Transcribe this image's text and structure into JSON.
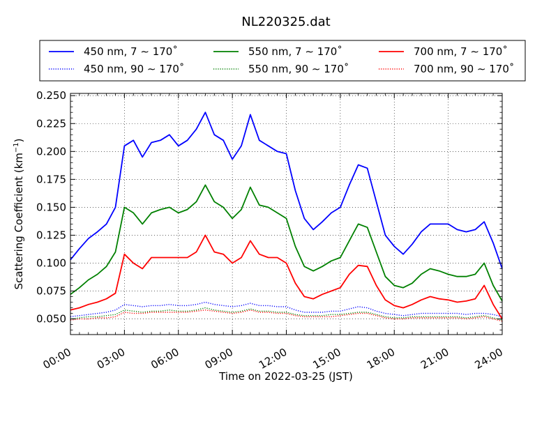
{
  "chart_data": {
    "type": "line",
    "title": "NL220325.dat",
    "xlabel": "Time on 2022-03-25 (JST)",
    "ylabel": "Scattering Coefficient (km",
    "ylabel_sup": "−1",
    "ylabel_close": ")",
    "xlim": [
      0,
      24
    ],
    "ylim": [
      0.036,
      0.252
    ],
    "xticks": [
      0,
      3,
      6,
      9,
      12,
      15,
      18,
      21,
      24
    ],
    "xtick_labels": [
      "00:00",
      "03:00",
      "06:00",
      "09:00",
      "12:00",
      "15:00",
      "18:00",
      "21:00",
      "24:00"
    ],
    "yticks": [
      0.05,
      0.075,
      0.1,
      0.125,
      0.15,
      0.175,
      0.2,
      0.225,
      0.25
    ],
    "ytick_labels": [
      "0.050",
      "0.075",
      "0.100",
      "0.125",
      "0.150",
      "0.175",
      "0.200",
      "0.225",
      "0.250"
    ],
    "grid": true,
    "legend_position": "top, above plot (3 columns)",
    "x": [
      0,
      0.5,
      1,
      1.5,
      2,
      2.5,
      3,
      3.5,
      4,
      4.5,
      5,
      5.5,
      6,
      6.5,
      7,
      7.5,
      8,
      8.5,
      9,
      9.5,
      10,
      10.5,
      11,
      11.5,
      12,
      12.5,
      13,
      13.5,
      14,
      14.5,
      15,
      15.5,
      16,
      16.5,
      17,
      17.5,
      18,
      18.5,
      19,
      19.5,
      20,
      20.5,
      21,
      21.5,
      22,
      22.5,
      23,
      23.5,
      24
    ],
    "series": [
      {
        "name": "450 nm, 7 ∼ 170˚",
        "color": "#0000ff",
        "style": "solid",
        "values": [
          0.103,
          0.113,
          0.122,
          0.128,
          0.135,
          0.15,
          0.205,
          0.21,
          0.195,
          0.208,
          0.21,
          0.215,
          0.205,
          0.21,
          0.22,
          0.235,
          0.215,
          0.21,
          0.193,
          0.205,
          0.233,
          0.21,
          0.205,
          0.2,
          0.198,
          0.165,
          0.14,
          0.13,
          0.137,
          0.145,
          0.15,
          0.17,
          0.188,
          0.185,
          0.155,
          0.125,
          0.115,
          0.108,
          0.117,
          0.128,
          0.135,
          0.135,
          0.135,
          0.13,
          0.128,
          0.13,
          0.137,
          0.118,
          0.095
        ]
      },
      {
        "name": "550 nm, 7 ∼ 170˚",
        "color": "#008000",
        "style": "solid",
        "values": [
          0.072,
          0.078,
          0.085,
          0.09,
          0.097,
          0.11,
          0.15,
          0.145,
          0.135,
          0.145,
          0.148,
          0.15,
          0.145,
          0.148,
          0.155,
          0.17,
          0.155,
          0.15,
          0.14,
          0.148,
          0.168,
          0.152,
          0.15,
          0.145,
          0.14,
          0.115,
          0.097,
          0.093,
          0.097,
          0.102,
          0.105,
          0.12,
          0.135,
          0.132,
          0.11,
          0.088,
          0.08,
          0.078,
          0.082,
          0.09,
          0.095,
          0.093,
          0.09,
          0.088,
          0.088,
          0.09,
          0.1,
          0.08,
          0.066
        ]
      },
      {
        "name": "700 nm, 7 ∼ 170˚",
        "color": "#ff0000",
        "style": "solid",
        "values": [
          0.058,
          0.06,
          0.063,
          0.065,
          0.068,
          0.073,
          0.108,
          0.1,
          0.095,
          0.105,
          0.105,
          0.105,
          0.105,
          0.105,
          0.11,
          0.125,
          0.11,
          0.108,
          0.1,
          0.105,
          0.12,
          0.108,
          0.105,
          0.105,
          0.1,
          0.082,
          0.07,
          0.068,
          0.072,
          0.075,
          0.078,
          0.09,
          0.098,
          0.097,
          0.08,
          0.067,
          0.062,
          0.06,
          0.063,
          0.067,
          0.07,
          0.068,
          0.067,
          0.065,
          0.066,
          0.068,
          0.08,
          0.063,
          0.05
        ]
      },
      {
        "name": "450 nm, 90 ∼ 170˚",
        "color": "#0000ff",
        "style": "dotted",
        "values": [
          0.052,
          0.053,
          0.054,
          0.055,
          0.056,
          0.058,
          0.063,
          0.062,
          0.061,
          0.062,
          0.062,
          0.063,
          0.062,
          0.062,
          0.063,
          0.065,
          0.063,
          0.062,
          0.061,
          0.062,
          0.064,
          0.062,
          0.062,
          0.061,
          0.061,
          0.058,
          0.056,
          0.056,
          0.056,
          0.057,
          0.057,
          0.059,
          0.061,
          0.06,
          0.057,
          0.055,
          0.054,
          0.053,
          0.054,
          0.055,
          0.055,
          0.055,
          0.055,
          0.055,
          0.054,
          0.055,
          0.055,
          0.054,
          0.052
        ]
      },
      {
        "name": "550 nm, 90 ∼ 170˚",
        "color": "#008000",
        "style": "dotted",
        "values": [
          0.05,
          0.051,
          0.052,
          0.052,
          0.053,
          0.054,
          0.058,
          0.057,
          0.056,
          0.057,
          0.057,
          0.058,
          0.057,
          0.057,
          0.058,
          0.06,
          0.058,
          0.057,
          0.056,
          0.057,
          0.059,
          0.057,
          0.057,
          0.056,
          0.056,
          0.054,
          0.053,
          0.053,
          0.053,
          0.054,
          0.054,
          0.055,
          0.056,
          0.056,
          0.054,
          0.052,
          0.051,
          0.051,
          0.052,
          0.052,
          0.052,
          0.052,
          0.052,
          0.052,
          0.051,
          0.052,
          0.053,
          0.051,
          0.049
        ]
      },
      {
        "name": "700 nm, 90 ∼ 170˚",
        "color": "#ff0000",
        "style": "dotted",
        "values": [
          0.049,
          0.05,
          0.05,
          0.051,
          0.051,
          0.052,
          0.056,
          0.055,
          0.055,
          0.056,
          0.056,
          0.056,
          0.056,
          0.056,
          0.057,
          0.058,
          0.057,
          0.056,
          0.055,
          0.056,
          0.058,
          0.056,
          0.056,
          0.055,
          0.055,
          0.053,
          0.052,
          0.052,
          0.052,
          0.052,
          0.053,
          0.054,
          0.055,
          0.055,
          0.053,
          0.051,
          0.05,
          0.05,
          0.051,
          0.051,
          0.051,
          0.051,
          0.051,
          0.051,
          0.05,
          0.051,
          0.052,
          0.05,
          0.048
        ]
      }
    ]
  }
}
